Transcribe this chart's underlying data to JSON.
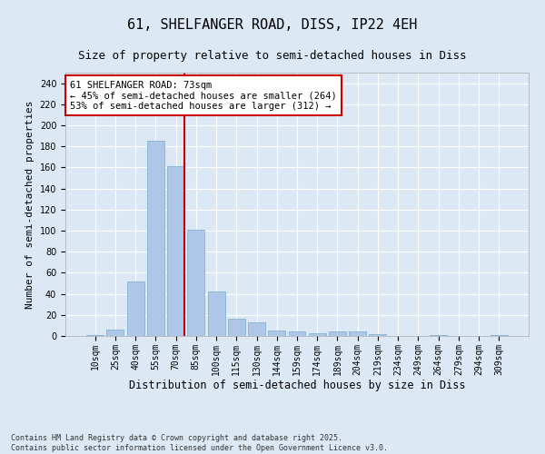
{
  "title": "61, SHELFANGER ROAD, DISS, IP22 4EH",
  "subtitle": "Size of property relative to semi-detached houses in Diss",
  "xlabel": "Distribution of semi-detached houses by size in Diss",
  "ylabel": "Number of semi-detached properties",
  "categories": [
    "10sqm",
    "25sqm",
    "40sqm",
    "55sqm",
    "70sqm",
    "85sqm",
    "100sqm",
    "115sqm",
    "130sqm",
    "144sqm",
    "159sqm",
    "174sqm",
    "189sqm",
    "204sqm",
    "219sqm",
    "234sqm",
    "249sqm",
    "264sqm",
    "279sqm",
    "294sqm",
    "309sqm"
  ],
  "values": [
    1,
    6,
    52,
    185,
    161,
    101,
    42,
    16,
    13,
    5,
    4,
    3,
    4,
    4,
    2,
    0,
    0,
    1,
    0,
    0,
    1
  ],
  "bar_color": "#aec6e8",
  "bar_edge_color": "#7aa8cf",
  "vline_x_index": 4,
  "vline_color": "#cc0000",
  "annotation_text": "61 SHELFANGER ROAD: 73sqm\n← 45% of semi-detached houses are smaller (264)\n53% of semi-detached houses are larger (312) →",
  "annotation_box_color": "#ffffff",
  "annotation_box_edge_color": "#cc0000",
  "ylim": [
    0,
    250
  ],
  "yticks": [
    0,
    20,
    40,
    60,
    80,
    100,
    120,
    140,
    160,
    180,
    200,
    220,
    240
  ],
  "background_color": "#dce9f5",
  "plot_bg_color": "#dce9f5",
  "footer": "Contains HM Land Registry data © Crown copyright and database right 2025.\nContains public sector information licensed under the Open Government Licence v3.0.",
  "title_fontsize": 11,
  "subtitle_fontsize": 9,
  "xlabel_fontsize": 8.5,
  "ylabel_fontsize": 8,
  "tick_fontsize": 7,
  "annotation_fontsize": 7.5,
  "footer_fontsize": 6
}
